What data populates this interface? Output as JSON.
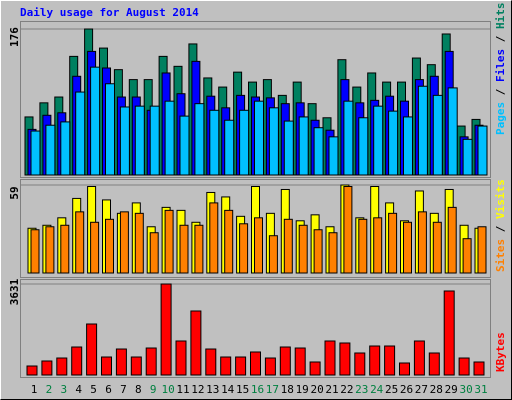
{
  "chart_data": [
    {
      "type": "bar",
      "title": "Daily usage for August 2014",
      "ylim": [
        0,
        176
      ],
      "yticks": [
        176
      ],
      "legend_separator": " / ",
      "series": [
        {
          "name": "Hits",
          "color": "#008060",
          "values": [
            70,
            87,
            94,
            143,
            176,
            153,
            127,
            115,
            115,
            143,
            131,
            158,
            117,
            106,
            124,
            112,
            115,
            96,
            112,
            86,
            69,
            139,
            106,
            123,
            112,
            112,
            141,
            133,
            170,
            59,
            67
          ]
        },
        {
          "name": "Files",
          "color": "#0000ff",
          "values": [
            55,
            72,
            75,
            119,
            149,
            129,
            94,
            94,
            78,
            123,
            98,
            137,
            95,
            81,
            96,
            94,
            93,
            86,
            87,
            66,
            54,
            115,
            87,
            90,
            95,
            89,
            115,
            119,
            149,
            46,
            60
          ]
        },
        {
          "name": "Pages",
          "color": "#00c0ff",
          "values": [
            53,
            60,
            64,
            100,
            130,
            110,
            82,
            83,
            83,
            89,
            71,
            86,
            78,
            66,
            78,
            89,
            81,
            65,
            70,
            57,
            46,
            89,
            69,
            83,
            77,
            70,
            107,
            96,
            105,
            43,
            59
          ]
        }
      ]
    },
    {
      "type": "bar",
      "ylim": [
        0,
        59
      ],
      "yticks": [
        59
      ],
      "legend_separator": " / ",
      "series": [
        {
          "name": "Visits",
          "color": "#ffff00",
          "values": [
            30,
            32,
            37,
            50,
            58,
            49,
            40,
            47,
            31,
            44,
            42,
            34,
            54,
            51,
            38,
            58,
            40,
            56,
            35,
            39,
            31,
            59,
            37,
            58,
            47,
            35,
            55,
            40,
            56,
            32,
            30
          ]
        },
        {
          "name": "Sites",
          "color": "#ff8000",
          "values": [
            29,
            31,
            32,
            41,
            34,
            36,
            41,
            40,
            27,
            42,
            32,
            32,
            47,
            42,
            33,
            37,
            25,
            36,
            32,
            29,
            27,
            58,
            36,
            37,
            40,
            34,
            41,
            34,
            44,
            23,
            31
          ]
        }
      ]
    },
    {
      "type": "bar",
      "ylim": [
        0,
        3631
      ],
      "yticks": [
        3631
      ],
      "categories": [
        "1",
        "2",
        "3",
        "4",
        "5",
        "6",
        "7",
        "8",
        "9",
        "10",
        "11",
        "12",
        "13",
        "14",
        "15",
        "16",
        "17",
        "18",
        "19",
        "20",
        "21",
        "22",
        "23",
        "24",
        "25",
        "26",
        "27",
        "28",
        "29",
        "30",
        "31"
      ],
      "label_colors": [
        "#000000",
        "#008040",
        "#008040",
        "#000000",
        "#000000",
        "#000000",
        "#000000",
        "#000000",
        "#008040",
        "#008040",
        "#000000",
        "#000000",
        "#000000",
        "#000000",
        "#000000",
        "#008040",
        "#008040",
        "#000000",
        "#000000",
        "#000000",
        "#000000",
        "#000000",
        "#008040",
        "#008040",
        "#000000",
        "#000000",
        "#000000",
        "#000000",
        "#000000",
        "#008040",
        "#008040"
      ],
      "series": [
        {
          "name": "KBytes",
          "color": "#ff0000",
          "values": [
            359,
            559,
            678,
            1117,
            2035,
            718,
            1037,
            718,
            1077,
            3631,
            1357,
            2554,
            1037,
            718,
            718,
            918,
            678,
            1117,
            1077,
            519,
            1357,
            1277,
            878,
            1157,
            1157,
            479,
            1357,
            878,
            3352,
            678,
            519
          ]
        }
      ]
    }
  ]
}
